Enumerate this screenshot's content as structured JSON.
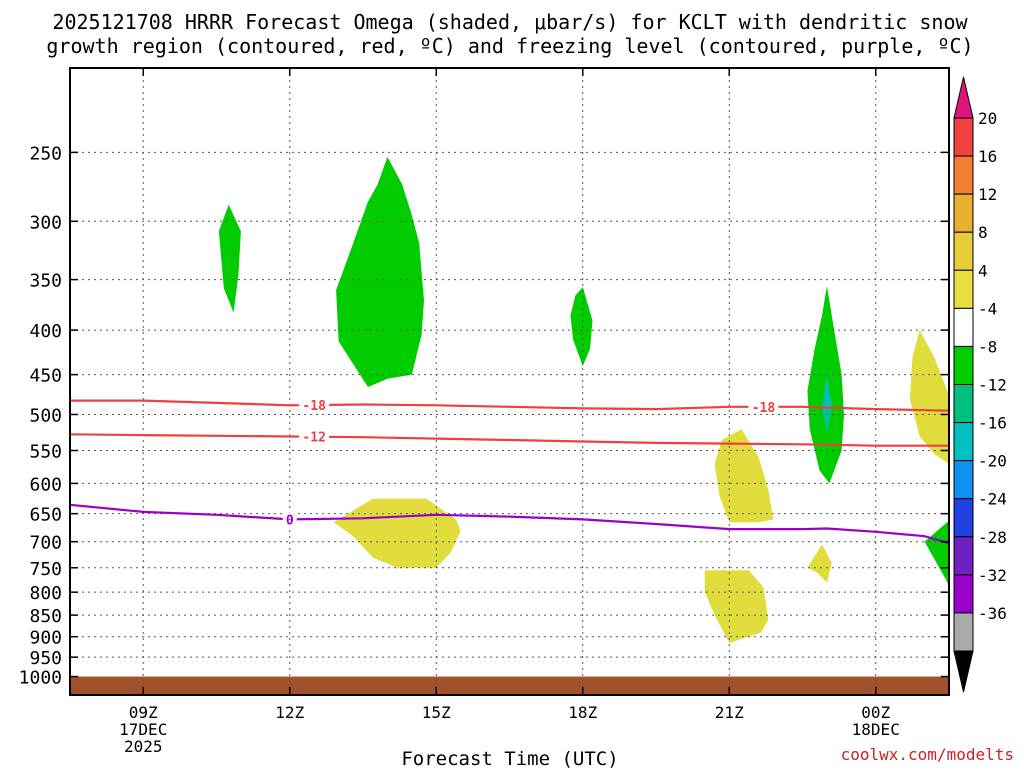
{
  "title_line1": "2025121708 HRRR Forecast Omega (shaded, μbar/s) for KCLT with dendritic snow",
  "title_line2": "growth region (contoured, red, ºC) and freezing level (contoured, purple, ºC)",
  "xlabel": "Forecast Time (UTC)",
  "credit": "coolwx.com/modelts",
  "chart_data": {
    "type": "heatmap",
    "x_axis": {
      "unit": "hours",
      "range": [
        7.5,
        25.5
      ],
      "ticks": [
        {
          "x": 9,
          "lines": [
            "09Z",
            "17DEC",
            "2025"
          ]
        },
        {
          "x": 12,
          "lines": [
            "12Z"
          ]
        },
        {
          "x": 15,
          "lines": [
            "15Z"
          ]
        },
        {
          "x": 18,
          "lines": [
            "18Z"
          ]
        },
        {
          "x": 21,
          "lines": [
            "21Z"
          ]
        },
        {
          "x": 24,
          "lines": [
            "00Z",
            "18DEC"
          ]
        }
      ]
    },
    "y_axis": {
      "label": "",
      "scale": "log",
      "reversed": true,
      "range": [
        200,
        1050
      ],
      "ticks": [
        250,
        300,
        350,
        400,
        450,
        500,
        550,
        600,
        650,
        700,
        750,
        800,
        850,
        900,
        950,
        1000
      ]
    },
    "grid": true,
    "ground": {
      "from": 1000,
      "color": "#a0522d"
    },
    "omega_regions": [
      {
        "color": "#00cc00",
        "points": [
          [
            10.75,
            287
          ],
          [
            11.0,
            308
          ],
          [
            10.95,
            345
          ],
          [
            10.85,
            382
          ],
          [
            10.65,
            358
          ],
          [
            10.55,
            308
          ]
        ]
      },
      {
        "color": "#00cc00",
        "points": [
          [
            14.0,
            253
          ],
          [
            14.3,
            272
          ],
          [
            14.5,
            295
          ],
          [
            14.65,
            318
          ],
          [
            14.75,
            370
          ],
          [
            14.7,
            405
          ],
          [
            14.5,
            450
          ],
          [
            14.0,
            455
          ],
          [
            13.6,
            465
          ],
          [
            13.0,
            412
          ],
          [
            12.95,
            360
          ],
          [
            13.3,
            318
          ],
          [
            13.6,
            285
          ],
          [
            13.8,
            272
          ]
        ]
      },
      {
        "color": "#00cc00",
        "points": [
          [
            18.0,
            357
          ],
          [
            18.2,
            390
          ],
          [
            18.15,
            420
          ],
          [
            18.0,
            440
          ],
          [
            17.8,
            410
          ],
          [
            17.75,
            385
          ],
          [
            17.85,
            365
          ]
        ]
      },
      {
        "color": "#00cc00",
        "points": [
          [
            23.0,
            356
          ],
          [
            23.15,
            400
          ],
          [
            23.3,
            450
          ],
          [
            23.35,
            500
          ],
          [
            23.3,
            550
          ],
          [
            23.05,
            600
          ],
          [
            22.85,
            580
          ],
          [
            22.65,
            520
          ],
          [
            22.6,
            470
          ],
          [
            22.75,
            420
          ],
          [
            22.9,
            385
          ]
        ]
      },
      {
        "color": "#00c0b0",
        "points": [
          [
            23.0,
            450
          ],
          [
            23.1,
            490
          ],
          [
            23.0,
            525
          ],
          [
            22.9,
            490
          ]
        ]
      },
      {
        "color": "#00cc00",
        "points": [
          [
            25.5,
            662
          ],
          [
            25.5,
            785
          ],
          [
            25.0,
            700
          ]
        ]
      },
      {
        "color": "#e0dc3c",
        "points": [
          [
            21.25,
            520
          ],
          [
            21.6,
            560
          ],
          [
            21.8,
            610
          ],
          [
            21.9,
            660
          ],
          [
            21.6,
            665
          ],
          [
            21.0,
            665
          ],
          [
            20.8,
            620
          ],
          [
            20.7,
            570
          ],
          [
            20.85,
            535
          ]
        ]
      },
      {
        "color": "#e0dc3c",
        "points": [
          [
            24.9,
            400
          ],
          [
            25.2,
            430
          ],
          [
            25.5,
            475
          ],
          [
            25.5,
            570
          ],
          [
            25.2,
            555
          ],
          [
            24.9,
            530
          ],
          [
            24.7,
            480
          ],
          [
            24.75,
            430
          ]
        ]
      },
      {
        "color": "#e0dc3c",
        "points": [
          [
            13.7,
            625
          ],
          [
            14.8,
            625
          ],
          [
            15.4,
            660
          ],
          [
            15.5,
            680
          ],
          [
            15.3,
            720
          ],
          [
            15.0,
            750
          ],
          [
            14.2,
            750
          ],
          [
            13.7,
            730
          ],
          [
            13.3,
            690
          ],
          [
            12.9,
            665
          ]
        ]
      },
      {
        "color": "#e0dc3c",
        "points": [
          [
            22.9,
            705
          ],
          [
            23.1,
            740
          ],
          [
            23.0,
            780
          ],
          [
            22.8,
            760
          ],
          [
            22.6,
            750
          ]
        ]
      },
      {
        "color": "#e0dc3c",
        "points": [
          [
            20.8,
            755
          ],
          [
            21.4,
            755
          ],
          [
            21.7,
            790
          ],
          [
            21.8,
            860
          ],
          [
            21.65,
            890
          ],
          [
            21.0,
            915
          ],
          [
            20.7,
            850
          ],
          [
            20.5,
            800
          ],
          [
            20.5,
            755
          ]
        ]
      }
    ],
    "contours": [
      {
        "name": "-18",
        "color": "#ee4040",
        "label_x": [
          12.5,
          21.7
        ],
        "points": [
          [
            7.5,
            482
          ],
          [
            9.0,
            482
          ],
          [
            10.5,
            485
          ],
          [
            12.0,
            488
          ],
          [
            13.5,
            487
          ],
          [
            15.0,
            488
          ],
          [
            16.5,
            490
          ],
          [
            18.0,
            492
          ],
          [
            19.5,
            493
          ],
          [
            21.0,
            490
          ],
          [
            22.5,
            490
          ],
          [
            24.0,
            493
          ],
          [
            25.5,
            495
          ]
        ]
      },
      {
        "name": "-12",
        "color": "#ee4040",
        "label_x": [
          12.5
        ],
        "points": [
          [
            7.5,
            527
          ],
          [
            9.0,
            528
          ],
          [
            10.5,
            529
          ],
          [
            12.0,
            530
          ],
          [
            13.5,
            531
          ],
          [
            15.0,
            533
          ],
          [
            16.5,
            535
          ],
          [
            18.0,
            537
          ],
          [
            19.5,
            539
          ],
          [
            21.0,
            540
          ],
          [
            22.5,
            541
          ],
          [
            24.0,
            543
          ],
          [
            25.5,
            543
          ]
        ]
      },
      {
        "name": "0",
        "color": "#9900cc",
        "label_x": [
          12.0
        ],
        "points": [
          [
            7.5,
            635
          ],
          [
            9.0,
            647
          ],
          [
            10.5,
            652
          ],
          [
            12.0,
            660
          ],
          [
            13.5,
            658
          ],
          [
            15.0,
            652
          ],
          [
            16.5,
            655
          ],
          [
            18.0,
            660
          ],
          [
            19.5,
            668
          ],
          [
            21.0,
            677
          ],
          [
            22.5,
            677
          ],
          [
            23.0,
            676
          ],
          [
            24.0,
            682
          ],
          [
            25.0,
            690
          ],
          [
            25.5,
            703
          ]
        ]
      }
    ],
    "colorbar": {
      "labels": [
        "20",
        "16",
        "12",
        "8",
        "4",
        "-4",
        "-8",
        "-12",
        "-16",
        "-20",
        "-24",
        "-28",
        "-32",
        "-36"
      ],
      "colors": [
        "#f04040",
        "#f08030",
        "#e8b030",
        "#e8cc38",
        "#e8e040",
        "#ffffff",
        "#00cc00",
        "#00c080",
        "#00c0c0",
        "#1090f0",
        "#2040e0",
        "#7020c0",
        "#9900cc",
        "#aaaaaa"
      ],
      "top_arrow_color": "#e0157a",
      "bottom_arrow_color": "#000000"
    }
  }
}
